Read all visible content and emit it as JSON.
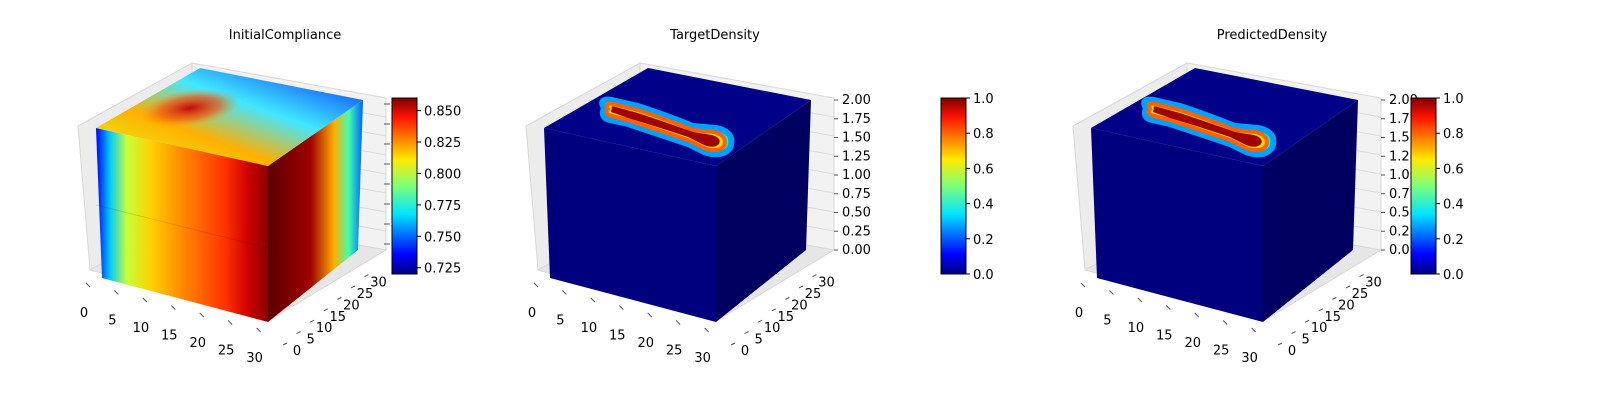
{
  "figure": {
    "panels": [
      {
        "title": "InitialCompliance"
      },
      {
        "title": "TargetDensity"
      },
      {
        "title": "PredictedDensity"
      }
    ]
  },
  "chart_data": [
    {
      "type": "3d-voxel",
      "title": "InitialCompliance",
      "colormap": "jet",
      "x_ticks": [
        "0",
        "5",
        "10",
        "15",
        "20",
        "25",
        "30"
      ],
      "y_ticks": [
        "0",
        "5",
        "10",
        "15",
        "20",
        "25",
        "30"
      ],
      "z_ticks": [],
      "xlim": [
        0,
        32
      ],
      "ylim": [
        0,
        32
      ],
      "colorbar": {
        "min": 0.72,
        "max": 0.86,
        "ticks": [
          "0.725",
          "0.750",
          "0.775",
          "0.800",
          "0.825",
          "0.850"
        ]
      }
    },
    {
      "type": "3d-voxel",
      "title": "TargetDensity",
      "colormap": "jet",
      "x_ticks": [
        "0",
        "5",
        "10",
        "15",
        "20",
        "25",
        "30"
      ],
      "y_ticks": [
        "0",
        "5",
        "10",
        "15",
        "20",
        "25",
        "30"
      ],
      "z_ticks": [
        "0.00",
        "0.25",
        "0.50",
        "0.75",
        "1.00",
        "1.25",
        "1.50",
        "1.75",
        "2.00"
      ],
      "xlim": [
        0,
        32
      ],
      "ylim": [
        0,
        32
      ],
      "zlim": [
        0,
        2
      ],
      "colorbar": {
        "min": 0,
        "max": 1,
        "ticks": [
          "0.0",
          "0.2",
          "0.4",
          "0.6",
          "0.8",
          "1.0"
        ]
      }
    },
    {
      "type": "3d-voxel",
      "title": "PredictedDensity",
      "colormap": "jet",
      "x_ticks": [
        "0",
        "5",
        "10",
        "15",
        "20",
        "25",
        "30"
      ],
      "y_ticks": [
        "0",
        "5",
        "10",
        "15",
        "20",
        "25",
        "30"
      ],
      "z_ticks": [
        "0.00",
        "0.25",
        "0.50",
        "0.75",
        "1.00",
        "1.25",
        "1.50",
        "1.75",
        "2.00"
      ],
      "xlim": [
        0,
        32
      ],
      "ylim": [
        0,
        32
      ],
      "zlim": [
        0,
        2
      ],
      "colorbar": {
        "min": 0,
        "max": 1,
        "ticks": [
          "0.0",
          "0.2",
          "0.4",
          "0.6",
          "0.8",
          "1.0"
        ]
      }
    }
  ]
}
